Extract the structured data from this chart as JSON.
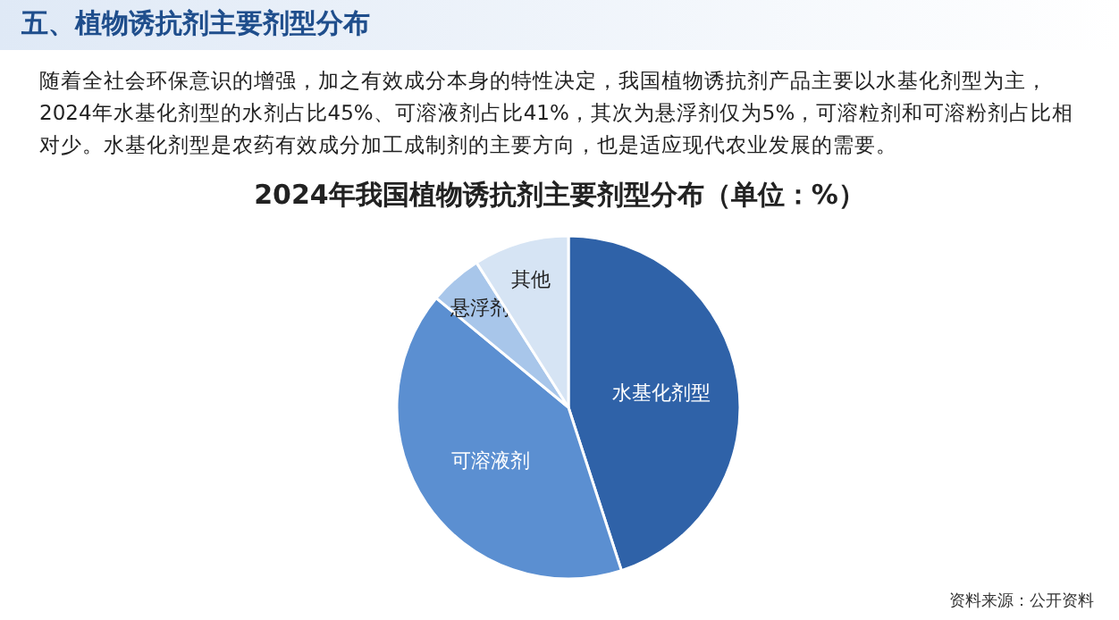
{
  "chart_data": {
    "type": "pie",
    "title": "2024年我国植物诱抗剂主要剂型分布（单位：%）",
    "categories": [
      "水基化剂型",
      "可溶液剂",
      "悬浮剂",
      "其他"
    ],
    "values": [
      45,
      41,
      5,
      9
    ],
    "colors": [
      "#2f62a8",
      "#5b8fd1",
      "#a8c6ea",
      "#d6e4f4"
    ],
    "annotations": [
      "五、植物诱抗剂主要剂型分布",
      "随着全社会环保意识的增强，加之有效成分本身的特性决定，我国植物诱抗剂产品主要以水基化剂型为主，2024年水基化剂型的水剂占比45%、可溶液剂占比41%，其次为悬浮剂仅为5%，可溶粒剂和可溶粉剂占比相对少。水基化剂型是农药有效成分加工成制剂的主要方向，也是适应现代农业发展的需要。",
      "资料来源：公开资料"
    ]
  }
}
